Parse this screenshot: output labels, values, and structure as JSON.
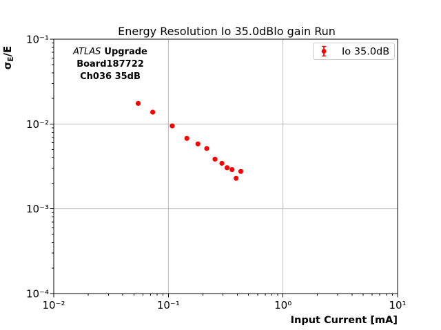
{
  "figure": {
    "title": "Energy Resolution Io 35.0dBlo gain Run",
    "xlabel": "Input Current [mA]",
    "ylabel": {
      "sigma": "σ",
      "subscript": "E",
      "rest": "/E"
    },
    "annotation": {
      "line1_italic": "ATLAS",
      "line1_bold": "Upgrade",
      "line2": "Board187722",
      "line3": "Ch036 35dB"
    },
    "legend": {
      "label": "Io 35.0dB"
    },
    "colors": {
      "marker": "#ff0000",
      "grid": "#b0b0b0",
      "axis": "#000000",
      "legend_border": "#cccccc",
      "background": "#ffffff"
    }
  },
  "chart_data": {
    "type": "scatter",
    "title": "Energy Resolution Io 35.0dBlo gain Run",
    "xlabel": "Input Current [mA]",
    "ylabel": "σE/E",
    "xscale": "log",
    "yscale": "log",
    "xlim": [
      0.01,
      10
    ],
    "ylim": [
      0.0001,
      0.1
    ],
    "grid": true,
    "legend_position": "upper right",
    "x_ticks": [
      {
        "exp": -2,
        "label": "10⁻²"
      },
      {
        "exp": -1,
        "label": "10⁻¹"
      },
      {
        "exp": 0,
        "label": "10⁰"
      },
      {
        "exp": 1,
        "label": "10¹"
      }
    ],
    "y_ticks": [
      {
        "exp": -1,
        "label": "10⁻¹"
      },
      {
        "exp": -2,
        "label": "10⁻²"
      },
      {
        "exp": -3,
        "label": "10⁻³"
      },
      {
        "exp": -4,
        "label": "10⁻⁴"
      }
    ],
    "series": [
      {
        "name": "Io 35.0dB",
        "color": "#ff0000",
        "marker": "circle-with-errorbar",
        "x": [
          0.0545,
          0.073,
          0.108,
          0.145,
          0.181,
          0.216,
          0.255,
          0.293,
          0.325,
          0.359,
          0.39,
          0.428
        ],
        "y": [
          0.0175,
          0.0138,
          0.0095,
          0.00676,
          0.00582,
          0.00514,
          0.00385,
          0.00344,
          0.00305,
          0.0029,
          0.00229,
          0.00276
        ]
      }
    ]
  }
}
